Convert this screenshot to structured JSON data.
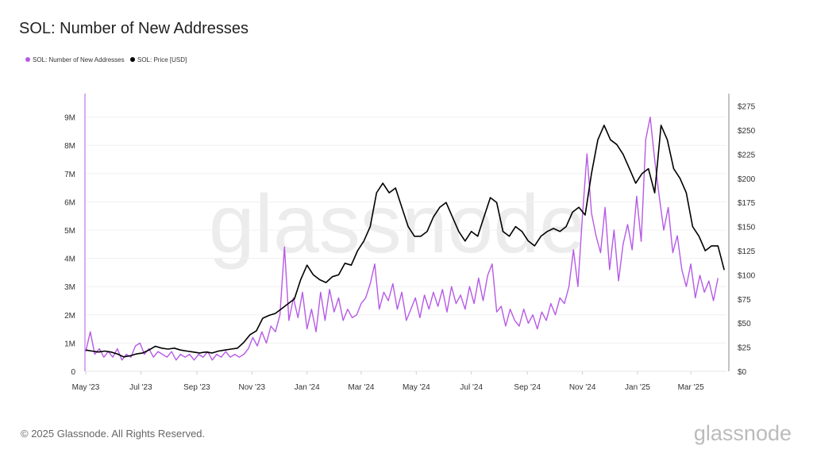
{
  "title": "SOL: Number of New Addresses",
  "footer": {
    "copyright": "© 2025 Glassnode. All Rights Reserved.",
    "logo": "glassnode"
  },
  "watermark": "glassnode",
  "chart_data": {
    "type": "line",
    "title": "SOL: Number of New Addresses",
    "legend_position": "top-left",
    "grid": true,
    "x_ticks": [
      {
        "date": "2023-05-01",
        "label": "May '23"
      },
      {
        "date": "2023-07-01",
        "label": "Jul '23"
      },
      {
        "date": "2023-09-01",
        "label": "Sep '23"
      },
      {
        "date": "2023-11-01",
        "label": "Nov '23"
      },
      {
        "date": "2024-01-01",
        "label": "Jan '24"
      },
      {
        "date": "2024-03-01",
        "label": "Mar '24"
      },
      {
        "date": "2024-05-01",
        "label": "May '24"
      },
      {
        "date": "2024-07-01",
        "label": "Jul '24"
      },
      {
        "date": "2024-09-01",
        "label": "Sep '24"
      },
      {
        "date": "2024-11-01",
        "label": "Nov '24"
      },
      {
        "date": "2025-01-01",
        "label": "Jan '25"
      },
      {
        "date": "2025-03-01",
        "label": "Mar '25"
      }
    ],
    "xlim": [
      "2023-05-01",
      "2025-04-15"
    ],
    "y_left": {
      "lim": [
        0,
        9.8
      ],
      "ticks": [
        0,
        1,
        2,
        3,
        4,
        5,
        6,
        7,
        8,
        9
      ],
      "labels": [
        "0",
        "1M",
        "2M",
        "3M",
        "4M",
        "5M",
        "6M",
        "7M",
        "8M",
        "9M"
      ]
    },
    "y_right": {
      "lim": [
        0,
        287
      ],
      "ticks": [
        0,
        25,
        50,
        75,
        100,
        125,
        150,
        175,
        200,
        225,
        250,
        275
      ],
      "labels": [
        "$0",
        "$25",
        "$50",
        "$75",
        "$100",
        "$125",
        "$150",
        "$175",
        "$200",
        "$225",
        "$250",
        "$275"
      ]
    },
    "series": [
      {
        "name": "SOL: Number of New Addresses",
        "axis": "left",
        "unit": "millions",
        "color": "#b65ae6",
        "start": "2023-05-01",
        "step_days": 5,
        "values": [
          0.7,
          1.4,
          0.6,
          0.8,
          0.5,
          0.7,
          0.5,
          0.8,
          0.4,
          0.6,
          0.5,
          0.9,
          1.0,
          0.6,
          0.8,
          0.5,
          0.7,
          0.6,
          0.5,
          0.7,
          0.4,
          0.6,
          0.5,
          0.6,
          0.4,
          0.6,
          0.5,
          0.7,
          0.4,
          0.6,
          0.5,
          0.7,
          0.5,
          0.6,
          0.5,
          0.6,
          0.8,
          1.2,
          0.9,
          1.4,
          1.0,
          1.6,
          1.4,
          2.0,
          4.4,
          1.8,
          2.6,
          1.9,
          2.8,
          1.5,
          2.2,
          1.4,
          2.8,
          1.8,
          2.9,
          2.1,
          2.6,
          1.8,
          2.2,
          1.9,
          2.0,
          2.4,
          2.6,
          3.1,
          3.8,
          2.2,
          2.8,
          2.5,
          3.1,
          2.2,
          2.8,
          1.8,
          2.2,
          2.6,
          1.9,
          2.7,
          2.2,
          2.8,
          2.3,
          2.9,
          2.1,
          3.0,
          2.4,
          2.7,
          2.2,
          3.0,
          2.4,
          3.3,
          2.5,
          3.4,
          3.8,
          2.1,
          2.3,
          1.6,
          2.2,
          1.8,
          1.6,
          2.2,
          1.7,
          2.0,
          1.5,
          2.1,
          1.8,
          2.4,
          2.0,
          2.6,
          2.4,
          3.0,
          4.3,
          3.0,
          5.5,
          7.7,
          5.6,
          4.8,
          4.2,
          5.8,
          3.6,
          5.0,
          3.2,
          4.5,
          5.2,
          4.3,
          6.2,
          4.6,
          8.2,
          9.0,
          7.5,
          6.2,
          5.0,
          5.8,
          4.2,
          4.8,
          3.6,
          3.0,
          3.8,
          2.6,
          3.4,
          2.8,
          3.2,
          2.5,
          3.3
        ]
      },
      {
        "name": "SOL: Price [USD]",
        "axis": "right",
        "unit": "USD",
        "color": "#000000",
        "start": "2023-05-01",
        "step_days": 7,
        "values": [
          22,
          21,
          20,
          21,
          20,
          18,
          15,
          16,
          18,
          19,
          22,
          26,
          24,
          23,
          24,
          22,
          21,
          20,
          19,
          20,
          19,
          21,
          22,
          23,
          24,
          30,
          38,
          42,
          55,
          58,
          60,
          65,
          70,
          75,
          95,
          110,
          100,
          95,
          92,
          98,
          100,
          112,
          110,
          125,
          135,
          150,
          185,
          195,
          185,
          190,
          170,
          150,
          140,
          140,
          145,
          160,
          170,
          175,
          160,
          145,
          135,
          145,
          140,
          160,
          180,
          175,
          145,
          140,
          150,
          145,
          135,
          130,
          140,
          145,
          148,
          145,
          150,
          165,
          170,
          162,
          205,
          240,
          255,
          240,
          235,
          225,
          210,
          195,
          205,
          210,
          185,
          255,
          240,
          210,
          200,
          185,
          150,
          140,
          125,
          130,
          130,
          105
        ]
      }
    ]
  }
}
